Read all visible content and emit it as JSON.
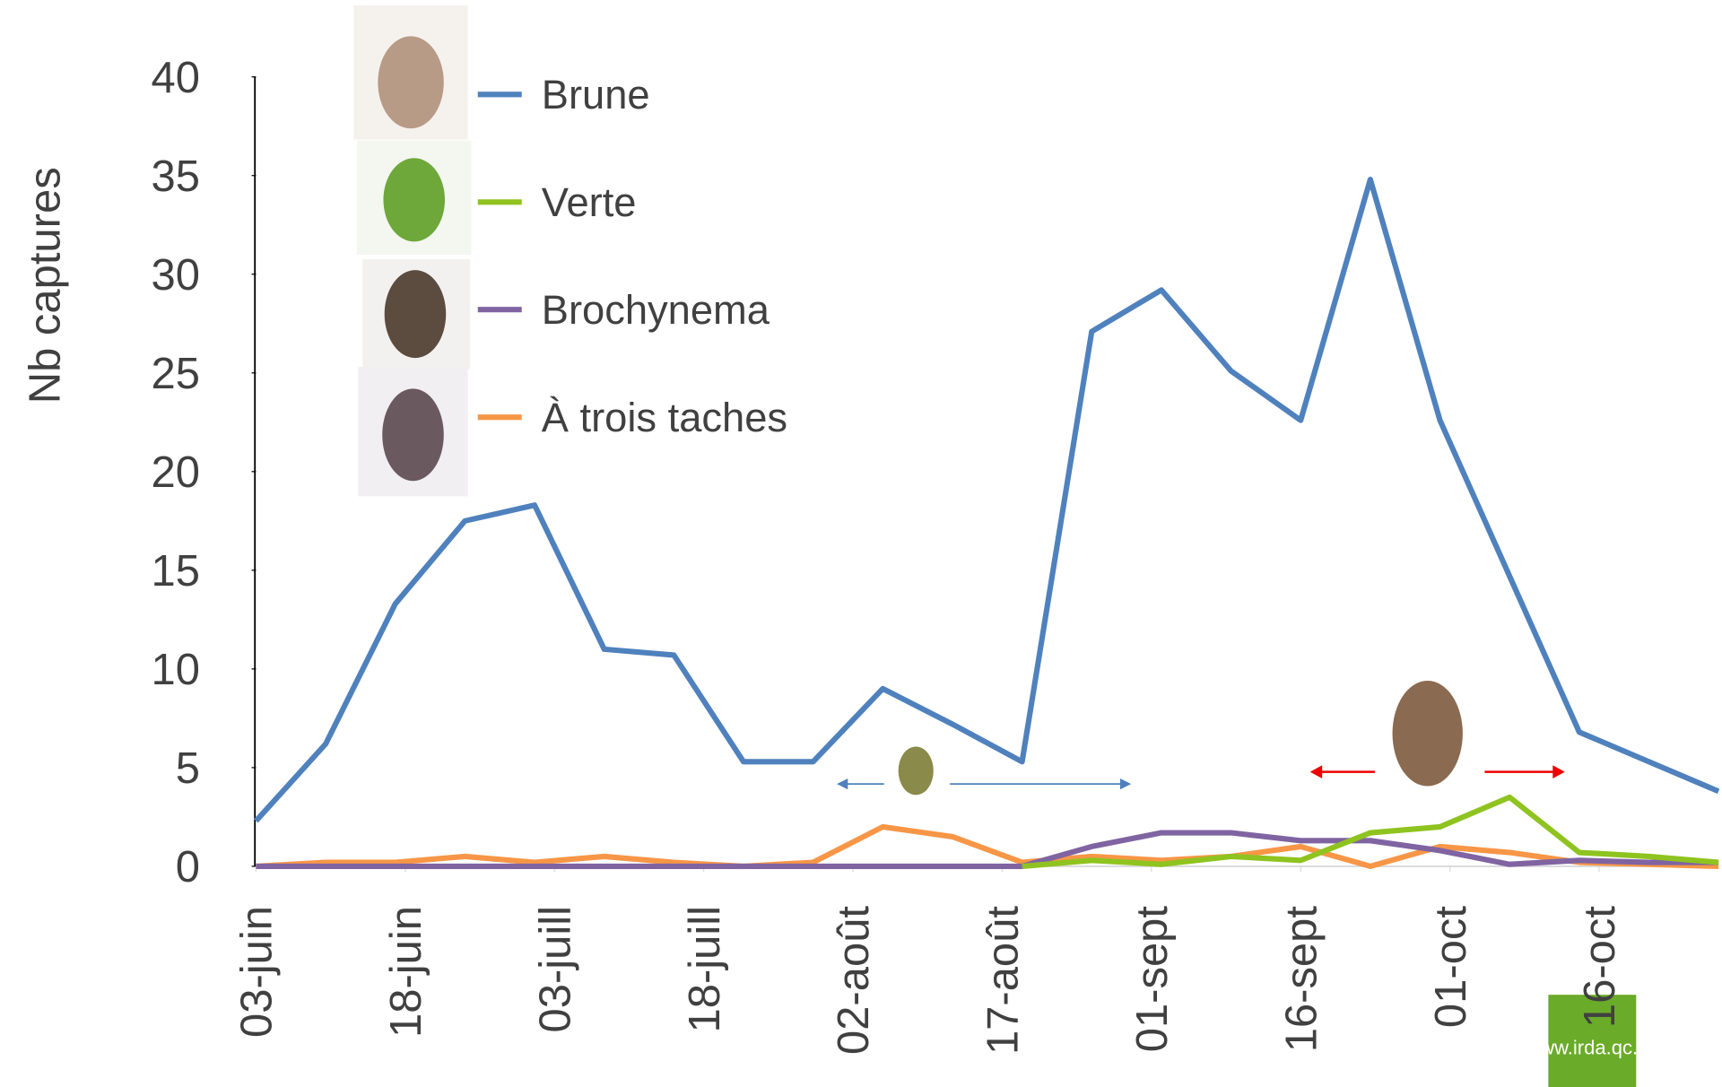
{
  "chart_data": {
    "type": "line",
    "y_label": "Nb captures",
    "x": [
      0,
      7,
      14,
      21,
      28,
      35,
      42,
      49,
      56,
      63,
      70,
      77,
      84,
      91,
      98,
      105,
      112,
      119,
      126,
      133,
      140,
      147
    ],
    "xlim": [
      0,
      147
    ],
    "xticks": [
      {
        "value": 0,
        "label": "03-juin"
      },
      {
        "value": 15,
        "label": "18-juin"
      },
      {
        "value": 30,
        "label": "03-juill"
      },
      {
        "value": 45,
        "label": "18-juill"
      },
      {
        "value": 60,
        "label": "02-août"
      },
      {
        "value": 75,
        "label": "17-août"
      },
      {
        "value": 90,
        "label": "01-sept"
      },
      {
        "value": 105,
        "label": "16-sept"
      },
      {
        "value": 120,
        "label": "01-oct"
      },
      {
        "value": 135,
        "label": "16-oct"
      }
    ],
    "ylim": [
      0,
      40
    ],
    "yticks": [
      0,
      5,
      10,
      15,
      20,
      25,
      30,
      35,
      40
    ],
    "series": [
      {
        "name": "Brune",
        "color": "#4f81bd",
        "values": [
          2.3,
          6.2,
          13.3,
          17.5,
          18.3,
          11,
          10.7,
          5.3,
          5.3,
          9,
          7.2,
          5.3,
          27.1,
          29.2,
          25.1,
          22.6,
          34.8,
          22.6,
          14.7,
          6.8,
          5.3,
          3.8
        ]
      },
      {
        "name": "Verte",
        "color": "#8fc31f",
        "values": [
          null,
          null,
          null,
          null,
          null,
          null,
          null,
          null,
          null,
          null,
          null,
          0,
          0.3,
          0.1,
          0.5,
          0.3,
          1.7,
          2,
          3.5,
          0.7,
          0.5,
          0.2
        ]
      },
      {
        "name": "Brochynema",
        "color": "#8064a2",
        "values": [
          0,
          0,
          0,
          0,
          0,
          0,
          0,
          0,
          0,
          0,
          0,
          0,
          1,
          1.7,
          1.7,
          1.3,
          1.3,
          0.8,
          0.1,
          0.3,
          0.2,
          0.2
        ]
      },
      {
        "name": "À trois taches",
        "color": "#f79646",
        "values": [
          0,
          0.2,
          0.2,
          0.5,
          0.2,
          0.5,
          0.2,
          0,
          0.2,
          2,
          1.5,
          0.2,
          0.5,
          0.3,
          0.5,
          1,
          0,
          1,
          0.7,
          0.2,
          0.1,
          0
        ]
      }
    ],
    "logo": "www.irda.qc.ca"
  }
}
